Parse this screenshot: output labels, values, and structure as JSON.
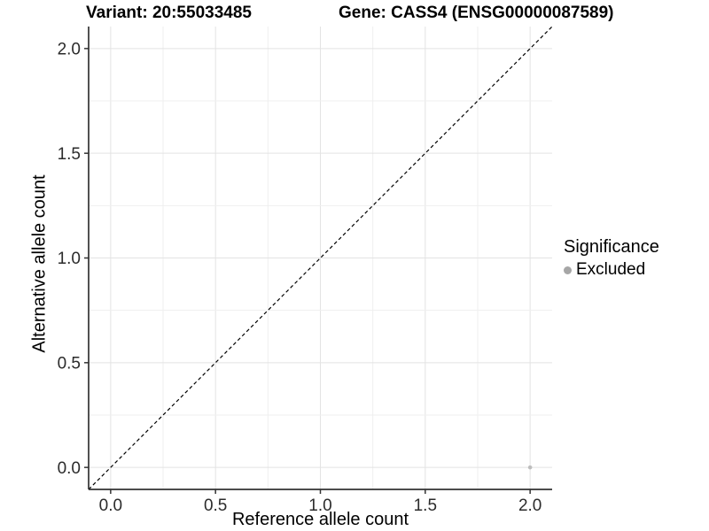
{
  "title": {
    "variant": "Variant: 20:55033485",
    "gene": "Gene: CASS4 (ENSG00000087589)"
  },
  "axis": {
    "x_label": "Reference allele count",
    "y_label": "Alternative allele count"
  },
  "legend": {
    "title": "Significance",
    "items": [
      {
        "label": "Excluded",
        "color": "#a6a6a6"
      }
    ]
  },
  "colors": {
    "axis_line": "#333333",
    "tick_mark": "#333333",
    "tick_label": "#2b2b2b",
    "grid_major": "#e3e3e3",
    "grid_minor": "#efefef",
    "reference_line": "#000000",
    "point": "#bdbdbd",
    "background": "#ffffff"
  },
  "chart_data": {
    "type": "scatter",
    "title": "Variant: 20:55033485    Gene: CASS4 (ENSG00000087589)",
    "xlabel": "Reference allele count",
    "ylabel": "Alternative allele count",
    "xlim": [
      -0.105,
      2.105
    ],
    "ylim": [
      -0.105,
      2.105
    ],
    "x_ticks": [
      0.0,
      0.5,
      1.0,
      1.5,
      2.0
    ],
    "y_ticks": [
      0.0,
      0.5,
      1.0,
      1.5,
      2.0
    ],
    "tick_decimals": 1,
    "minor_grid_step": 0.25,
    "grid": true,
    "legend_position": "right",
    "series": [
      {
        "name": "Excluded",
        "color": "#bdbdbd",
        "marker": "circle",
        "points": [
          {
            "x": 2.0,
            "y": 0.0
          }
        ]
      }
    ],
    "reference_line": {
      "type": "identity-diagonal",
      "from": [
        -0.105,
        -0.105
      ],
      "to": [
        2.105,
        2.105
      ],
      "style": "dashed",
      "color": "#000000"
    }
  }
}
